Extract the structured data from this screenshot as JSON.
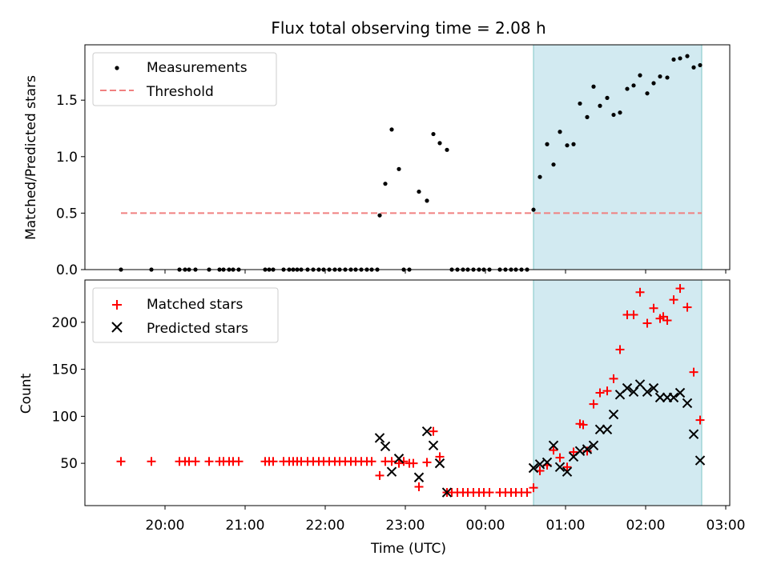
{
  "chart_data": [
    {
      "type": "scatter",
      "title": "Flux total observing time = 2.08 h",
      "xlabel": "",
      "ylabel": "Matched/Predicted stars",
      "x_unit": "UTC hours (hours past 24 are after midnight)",
      "xlim": [
        19.0,
        27.05
      ],
      "ylim": [
        0.0,
        1.99
      ],
      "y_ticks": [
        0.0,
        0.5,
        1.0,
        1.5
      ],
      "y_tick_labels": [
        "0.0",
        "0.5",
        "1.0",
        "1.5"
      ],
      "grid": false,
      "legend": "upper left",
      "highlight_span": [
        24.6,
        26.7
      ],
      "highlight_color": "#add8e6",
      "series": [
        {
          "name": "Measurements",
          "kind": "points",
          "color": "#000000",
          "x": [
            19.45,
            19.83,
            20.18,
            20.25,
            20.3,
            20.38,
            20.55,
            20.68,
            20.73,
            20.8,
            20.85,
            20.92,
            21.25,
            21.3,
            21.35,
            21.48,
            21.55,
            21.6,
            21.65,
            21.7,
            21.78,
            21.85,
            21.92,
            21.98,
            22.05,
            22.12,
            22.18,
            22.25,
            22.32,
            22.38,
            22.45,
            22.52,
            22.58,
            22.65,
            22.68,
            22.75,
            22.83,
            22.92,
            22.98,
            23.05,
            23.17,
            23.27,
            23.35,
            23.43,
            23.52,
            23.58,
            23.65,
            23.72,
            23.78,
            23.85,
            23.92,
            23.98,
            24.05,
            24.18,
            24.25,
            24.32,
            24.38,
            24.45,
            24.52,
            24.6,
            24.68,
            24.77,
            24.85,
            24.93,
            25.02,
            25.1,
            25.18,
            25.27,
            25.35,
            25.43,
            25.52,
            25.6,
            25.68,
            25.77,
            25.85,
            25.93,
            26.02,
            26.1,
            26.18,
            26.27,
            26.35,
            26.43,
            26.52,
            26.6,
            26.68
          ],
          "y": [
            0.0,
            0.0,
            0.0,
            0.0,
            0.0,
            0.0,
            0.0,
            0.0,
            0.0,
            0.0,
            0.0,
            0.0,
            0.0,
            0.0,
            0.0,
            0.0,
            0.0,
            0.0,
            0.0,
            0.0,
            0.0,
            0.0,
            0.0,
            0.0,
            0.0,
            0.0,
            0.0,
            0.0,
            0.0,
            0.0,
            0.0,
            0.0,
            0.0,
            0.0,
            0.48,
            0.76,
            1.24,
            0.89,
            0.0,
            0.0,
            0.69,
            0.61,
            1.2,
            1.12,
            1.06,
            0.0,
            0.0,
            0.0,
            0.0,
            0.0,
            0.0,
            0.0,
            0.0,
            0.0,
            0.0,
            0.0,
            0.0,
            0.0,
            0.0,
            0.53,
            0.82,
            1.11,
            0.93,
            1.22,
            1.1,
            1.11,
            1.47,
            1.35,
            1.62,
            1.45,
            1.52,
            1.37,
            1.39,
            1.6,
            1.63,
            1.72,
            1.56,
            1.65,
            1.71,
            1.7,
            1.86,
            1.87,
            1.89,
            1.79,
            1.81
          ]
        },
        {
          "name": "Threshold",
          "kind": "line",
          "style": "dashed",
          "color": "#f08080",
          "x": [
            19.45,
            26.7
          ],
          "y": [
            0.5,
            0.5
          ]
        }
      ]
    },
    {
      "type": "scatter",
      "title": "",
      "xlabel": "Time (UTC)",
      "ylabel": "Count",
      "x_unit": "UTC hours (hours past 24 are after midnight)",
      "xlim": [
        19.0,
        27.05
      ],
      "ylim": [
        5,
        245
      ],
      "y_ticks": [
        50,
        100,
        150,
        200
      ],
      "y_tick_labels": [
        "50",
        "100",
        "150",
        "200"
      ],
      "x_ticks": [
        20,
        21,
        22,
        23,
        24,
        25,
        26,
        27
      ],
      "x_tick_labels": [
        "20:00",
        "21:00",
        "22:00",
        "23:00",
        "00:00",
        "01:00",
        "02:00",
        "03:00"
      ],
      "grid": false,
      "legend": "upper left",
      "highlight_span": [
        24.6,
        26.7
      ],
      "highlight_color": "#add8e6",
      "series": [
        {
          "name": "Matched stars",
          "kind": "plus",
          "color": "#ff0000",
          "x": [
            19.45,
            19.83,
            20.18,
            20.25,
            20.3,
            20.38,
            20.55,
            20.68,
            20.73,
            20.8,
            20.85,
            20.92,
            21.25,
            21.3,
            21.35,
            21.48,
            21.55,
            21.6,
            21.65,
            21.7,
            21.78,
            21.85,
            21.92,
            21.98,
            22.05,
            22.12,
            22.18,
            22.25,
            22.32,
            22.38,
            22.45,
            22.52,
            22.58,
            22.68,
            22.75,
            22.83,
            22.92,
            22.98,
            23.05,
            23.1,
            23.17,
            23.27,
            23.35,
            23.43,
            23.52,
            23.58,
            23.65,
            23.72,
            23.78,
            23.85,
            23.92,
            23.98,
            24.05,
            24.18,
            24.25,
            24.32,
            24.38,
            24.45,
            24.52,
            24.6,
            24.68,
            24.77,
            24.85,
            24.93,
            25.02,
            25.1,
            25.18,
            25.22,
            25.27,
            25.35,
            25.43,
            25.52,
            25.6,
            25.68,
            25.77,
            25.85,
            25.93,
            26.02,
            26.1,
            26.18,
            26.22,
            26.27,
            26.35,
            26.43,
            26.52,
            26.6,
            26.68
          ],
          "y": [
            52,
            52,
            52,
            52,
            52,
            52,
            52,
            52,
            52,
            52,
            52,
            52,
            52,
            52,
            52,
            52,
            52,
            52,
            52,
            52,
            52,
            52,
            52,
            52,
            52,
            52,
            52,
            52,
            52,
            52,
            52,
            52,
            52,
            37,
            52,
            52,
            50,
            52,
            50,
            50,
            25,
            51,
            84,
            57,
            19,
            19,
            19,
            19,
            19,
            19,
            19,
            19,
            19,
            19,
            19,
            19,
            19,
            19,
            19,
            24,
            42,
            48,
            64,
            56,
            46,
            62,
            92,
            91,
            63,
            113,
            125,
            127,
            140,
            171,
            208,
            208,
            232,
            199,
            215,
            204,
            206,
            202,
            224,
            236,
            216,
            147,
            96
          ]
        },
        {
          "name": "Predicted stars",
          "kind": "cross",
          "color": "#000000",
          "x": [
            22.68,
            22.75,
            22.83,
            22.92,
            23.17,
            23.27,
            23.35,
            23.43,
            23.52,
            24.6,
            24.68,
            24.77,
            24.85,
            24.93,
            25.02,
            25.1,
            25.18,
            25.27,
            25.35,
            25.43,
            25.52,
            25.6,
            25.68,
            25.77,
            25.85,
            25.93,
            26.02,
            26.1,
            26.18,
            26.27,
            26.35,
            26.43,
            26.52,
            26.6,
            26.68
          ],
          "y": [
            77,
            68,
            41,
            55,
            35,
            84,
            69,
            50,
            19,
            45,
            49,
            51,
            69,
            46,
            41,
            57,
            63,
            65,
            69,
            86,
            86,
            102,
            123,
            130,
            126,
            134,
            126,
            130,
            120,
            120,
            120,
            125,
            114,
            81,
            53
          ]
        }
      ]
    }
  ]
}
